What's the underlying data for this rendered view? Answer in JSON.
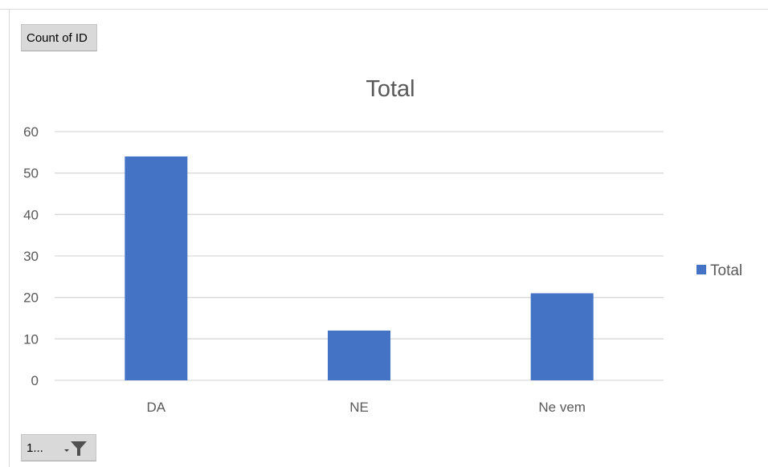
{
  "value_field_button": {
    "label": "Count of ID"
  },
  "filter_button": {
    "label": "1...",
    "icon": "filter-icon"
  },
  "chart_data": {
    "type": "bar",
    "title": "Total",
    "categories": [
      "DA",
      "NE",
      "Ne vem"
    ],
    "series": [
      {
        "name": "Total",
        "values": [
          54,
          12,
          21
        ],
        "color": "#4472c4"
      }
    ],
    "ylim": [
      0,
      60
    ],
    "yticks": [
      0,
      10,
      20,
      30,
      40,
      50,
      60
    ],
    "grid": true,
    "legend_position": "right",
    "colors": {
      "bar": "#4472c4",
      "gridline": "#d9d9d9",
      "axis_text": "#595959",
      "title": "#595959"
    }
  }
}
